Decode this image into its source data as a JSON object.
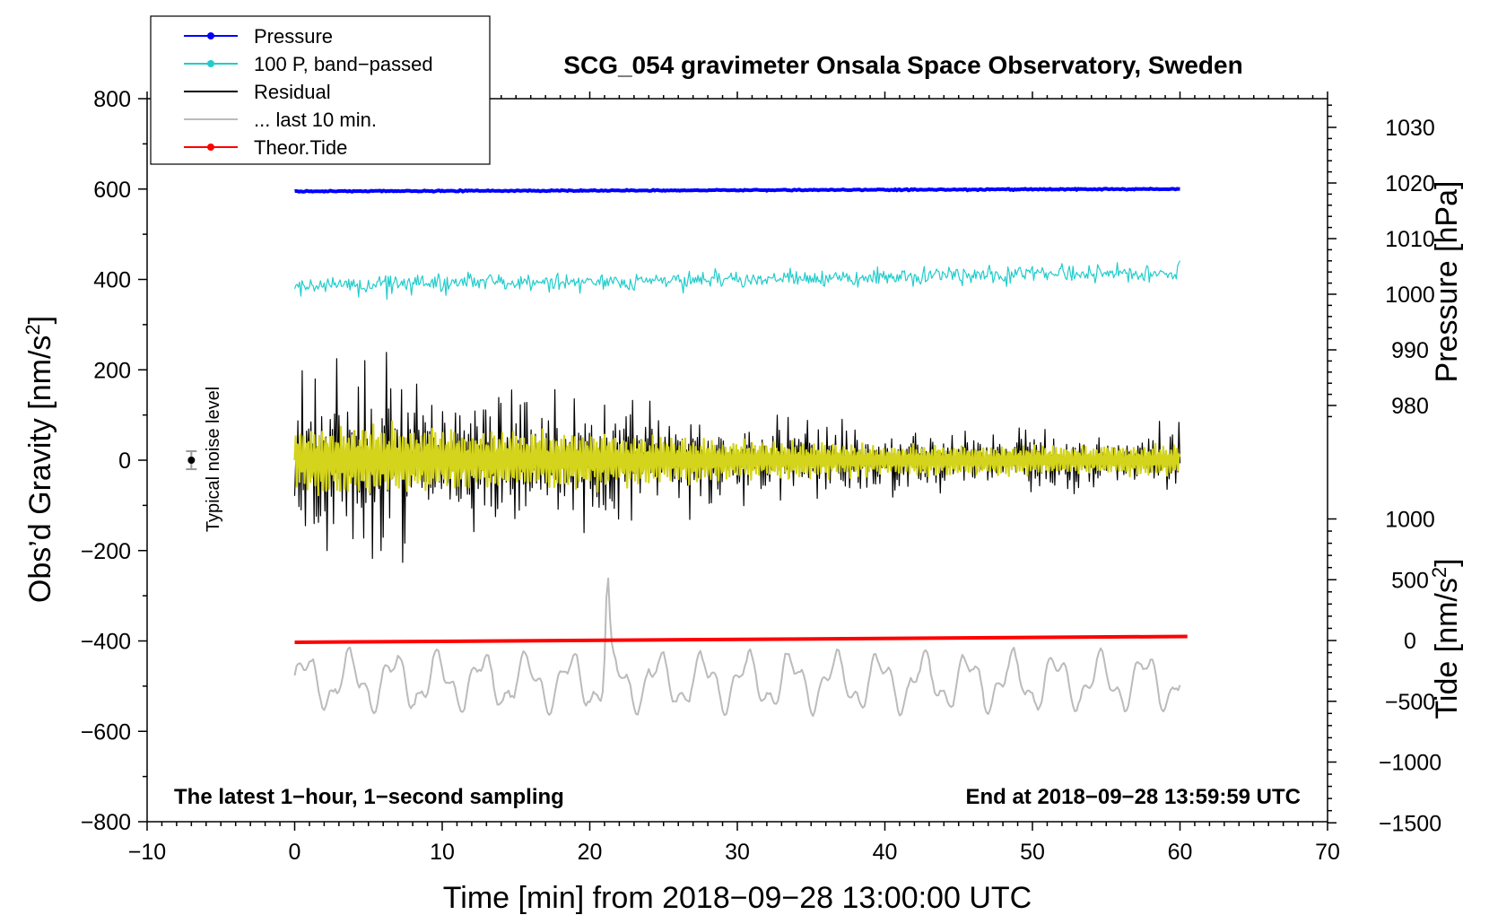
{
  "chart_data": {
    "type": "line",
    "title": "SCG_054 gravimeter Onsala Space Observatory, Sweden",
    "xlabel": "Time [min] from 2018−09−28 13:00:00 UTC",
    "ylabel_main": "Obs’d Gravity [nm/s",
    "ylabel_sup": "2",
    "ylabel_close": "]",
    "xlim": [
      -10,
      70
    ],
    "ylim": [
      -800,
      800
    ],
    "x_ticks": [
      -10,
      0,
      10,
      20,
      30,
      40,
      50,
      60,
      70
    ],
    "x_tick_labels": [
      "−10",
      "0",
      "10",
      "20",
      "30",
      "40",
      "50",
      "60",
      "70"
    ],
    "y_ticks": [
      -800,
      -600,
      -400,
      -200,
      0,
      200,
      400,
      600,
      800
    ],
    "y_tick_labels": [
      "−800",
      "−600",
      "−400",
      "−200",
      "0",
      "200",
      "400",
      "600",
      "800"
    ],
    "pressure_axis": {
      "label": "Pressure [hPa]",
      "range": [
        970,
        1035
      ],
      "ticks": [
        980,
        990,
        1000,
        1010,
        1020,
        1030
      ],
      "tick_labels": [
        "980",
        "990",
        "1000",
        "1010",
        "1020",
        "1030"
      ]
    },
    "tide_axis": {
      "label_main": "Tide [nm/s",
      "label_sup": "2",
      "label_close": "]",
      "range": [
        -1500,
        1000
      ],
      "ticks": [
        -1500,
        -1000,
        -500,
        0,
        500,
        1000
      ],
      "tick_labels": [
        "−1500",
        "−1000",
        "−500",
        "0",
        "500",
        "1000"
      ]
    },
    "legend": {
      "position": "top-left",
      "entries": [
        {
          "label": "Pressure",
          "color": "#0000ff",
          "marker": true
        },
        {
          "label": "100 P, band−passed",
          "color": "#22cccc",
          "marker": true
        },
        {
          "label": "Residual",
          "color": "#000000",
          "marker": false
        },
        {
          "label": "... last 10 min.",
          "color": "#bbbbbb",
          "marker": false
        },
        {
          "label": "Theor.Tide",
          "color": "#ff0000",
          "marker": true
        }
      ]
    },
    "annotations": {
      "bottom_left": "The latest 1−hour, 1−second sampling",
      "bottom_right": "End at 2018−09−28 13:59:59 UTC",
      "noise_label": "Typical noise level",
      "noise_level": {
        "x": -7,
        "y": 0,
        "err": 20
      }
    },
    "series": [
      {
        "name": "Pressure",
        "color": "#0000ff",
        "x_range": [
          0,
          60
        ],
        "level_start": 595,
        "level_end": 600,
        "noise": 2
      },
      {
        "name": "100 P, band-passed",
        "color": "#22cccc",
        "x_range": [
          0,
          60
        ],
        "center_start": 385,
        "center_end": 415,
        "amplitude": 40
      },
      {
        "name": "Residual",
        "color": "#000000",
        "x_range": [
          0,
          60
        ],
        "center": 0,
        "amplitude_start": 230,
        "amplitude_end": 70
      },
      {
        "name": "Residual (yellow overlay)",
        "color": "#d4d41c",
        "x_range": [
          0,
          60
        ],
        "center": 0,
        "amplitude_start": 110,
        "amplitude_end": 45
      },
      {
        "name": "... last 10 min.",
        "color": "#bbbbbb",
        "x_range": [
          0,
          60
        ],
        "center": -490,
        "amplitude": 70
      },
      {
        "name": "Theor.Tide",
        "color": "#ff0000",
        "x_range": [
          0,
          60.5
        ],
        "y_start": -403,
        "y_end": -390
      }
    ]
  }
}
